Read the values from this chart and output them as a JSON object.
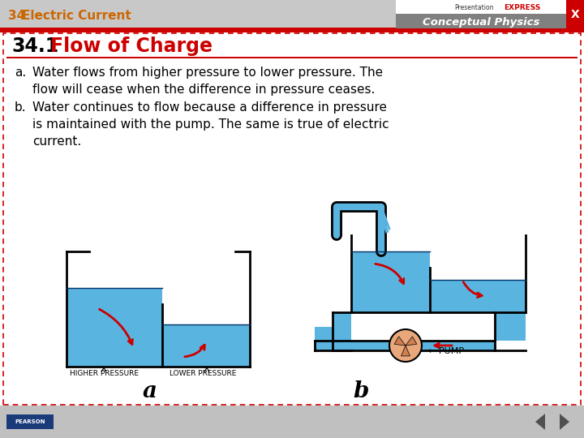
{
  "header_bg": "#c8c8c8",
  "header_red_bar_color": "#cc0000",
  "header_text_34_color": "#cc6600",
  "brand_bg": "#808080",
  "brand_text1": "Presentation",
  "brand_text1b": "EXPRESS",
  "brand_text2": "Conceptual Physics",
  "section_title_num": "34.1",
  "section_title_text": " Flow of Charge",
  "section_title_num_color": "#000000",
  "section_title_text_color": "#cc0000",
  "body_text_a": "Water flows from higher pressure to lower pressure. The\nflow will cease when the difference in pressure ceases.",
  "body_text_b": "Water continues to flow because a difference in pressure\nis maintained with the pump. The same is true of electric\ncurrent.",
  "label_a": "a",
  "label_b": "b",
  "label_higher": "HIGHER PRESSURE",
  "label_lower": "LOWER PRESSURE",
  "label_pump": "← PUMP",
  "water_color": "#5ab4e0",
  "tank_outline": "#000000",
  "arrow_color": "#cc0000",
  "pump_color": "#e8a87c",
  "bg_color": "#ffffff",
  "border_color": "#cc0000",
  "footer_bg": "#c0c0c0",
  "pearson_bg": "#1a3a7a",
  "nav_color": "#707070"
}
